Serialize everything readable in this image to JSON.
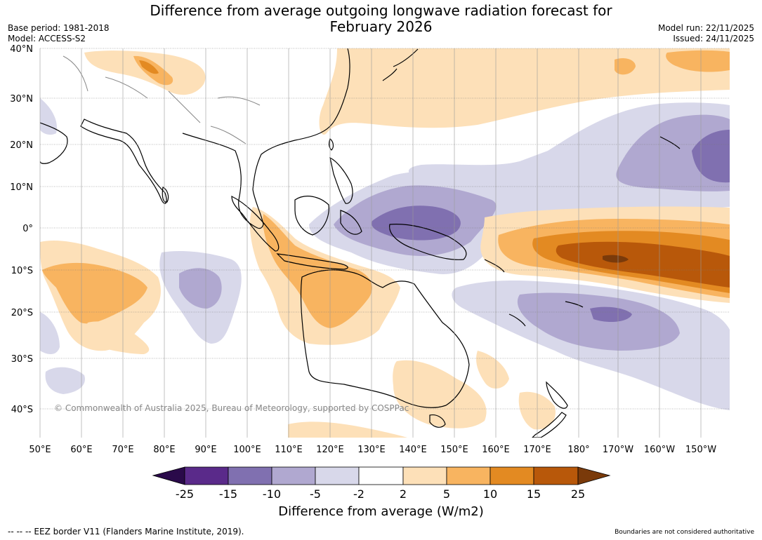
{
  "title_line1": "Difference from average outgoing longwave radiation forecast for",
  "title_line2": "February 2026",
  "base_period": "Base period: 1981-2018",
  "model": "Model: ACCESS-S2",
  "model_run": "Model run: 22/11/2025",
  "issued": "Issued: 24/11/2025",
  "copyright": "© Commonwealth of Australia 2025, Bureau of Meteorology, supported by COSPPac",
  "colorbar_label": "Difference from average (W/m2)",
  "footer_left": "--  --  -- EEZ border V11 (Flanders Marine Institute, 2019).",
  "footer_right": "Boundaries are not considered authoritative",
  "colors": {
    "land_line": "#000000",
    "grid": "#999999",
    "n25": "#2a0a4a",
    "n15": "#5a2a8a",
    "n10": "#8070b0",
    "n5": "#b0a8d0",
    "n2": "#d8d8ea",
    "zero": "#ffffff",
    "p2": "#fde0b8",
    "p5": "#f8b460",
    "p10": "#e38a22",
    "p15": "#b8580a",
    "p25": "#7a3a0a"
  },
  "map": {
    "lon_labels": [
      "50°E",
      "60°E",
      "70°E",
      "80°E",
      "90°E",
      "100°E",
      "110°E",
      "120°E",
      "130°E",
      "140°E",
      "150°E",
      "160°E",
      "170°E",
      "180°",
      "170°W",
      "160°W",
      "150°W"
    ],
    "lat_labels": [
      "40°N",
      "30°N",
      "20°N",
      "10°N",
      "0°",
      "10°S",
      "20°S",
      "30°S",
      "40°S"
    ]
  },
  "colorbar": {
    "ticks": [
      "-25",
      "-15",
      "-10",
      "-5",
      "-2",
      "2",
      "5",
      "10",
      "15",
      "25"
    ],
    "bins": [
      "n15",
      "n10",
      "n5",
      "n2",
      "zero",
      "p2",
      "p5",
      "p10",
      "p15"
    ]
  }
}
